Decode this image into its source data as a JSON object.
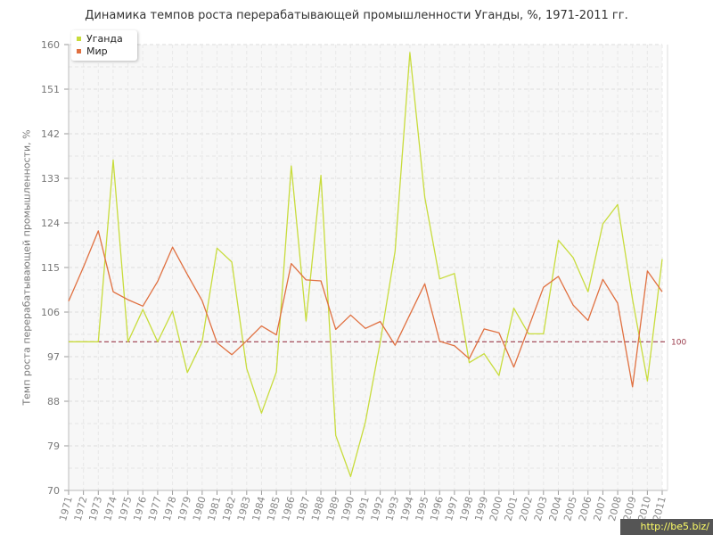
{
  "chart_data": {
    "type": "line",
    "title": "Динамика темпов роста перерабатывающей промышленности Уганды, %, 1971-2011 гг.",
    "ylabel": "Темп роста перерабатывающей промышленности, %",
    "xlabel": "",
    "ylim": [
      70,
      160
    ],
    "y_ticks": [
      70,
      79,
      88,
      97,
      106,
      115,
      124,
      133,
      142,
      151,
      160
    ],
    "x": [
      "1971",
      "1972",
      "1973",
      "1974",
      "1975",
      "1976",
      "1977",
      "1978",
      "1979",
      "1980",
      "1981",
      "1982",
      "1983",
      "1984",
      "1985",
      "1986",
      "1987",
      "1988",
      "1989",
      "1990",
      "1991",
      "1992",
      "1993",
      "1994",
      "1995",
      "1996",
      "1997",
      "1998",
      "1999",
      "2000",
      "2001",
      "2002",
      "2003",
      "2004",
      "2005",
      "2006",
      "2007",
      "2008",
      "2009",
      "2010",
      "2011"
    ],
    "series": [
      {
        "name": "Уганда",
        "color": "#c8dc3c",
        "values": [
          100,
          100,
          100,
          136.7,
          100,
          106.5,
          100,
          106.2,
          93.8,
          100,
          118.9,
          116.1,
          94.6,
          85.6,
          93.9,
          135.5,
          104.2,
          133.6,
          81.1,
          72.8,
          83.8,
          99.9,
          118.3,
          158.4,
          129.2,
          112.7,
          113.8,
          95.8,
          97.6,
          93.2,
          106.8,
          101.6,
          101.6,
          120.5,
          117,
          110.1,
          123.8,
          127.7,
          108.6,
          92.1,
          116.7
        ]
      },
      {
        "name": "Мир",
        "color": "#e07040",
        "values": [
          108.2,
          115.1,
          122.4,
          110.1,
          108.5,
          107.2,
          112.2,
          119.1,
          113.6,
          108.3,
          99.8,
          97.4,
          100.2,
          103.2,
          101.4,
          115.8,
          112.5,
          112.3,
          102.5,
          105.4,
          102.7,
          104.1,
          99.3,
          105.5,
          111.7,
          100.1,
          99.2,
          96.6,
          102.6,
          101.8,
          94.9,
          102.9,
          111,
          113.2,
          107.4,
          104.3,
          112.6,
          107.8,
          90.9,
          114.3,
          110.1
        ]
      }
    ],
    "reference_line": {
      "value": 100,
      "label": "100",
      "color": "#9a3a4a"
    },
    "grid": true,
    "legend_position": "top-left"
  },
  "watermark": "http://be5.biz/"
}
